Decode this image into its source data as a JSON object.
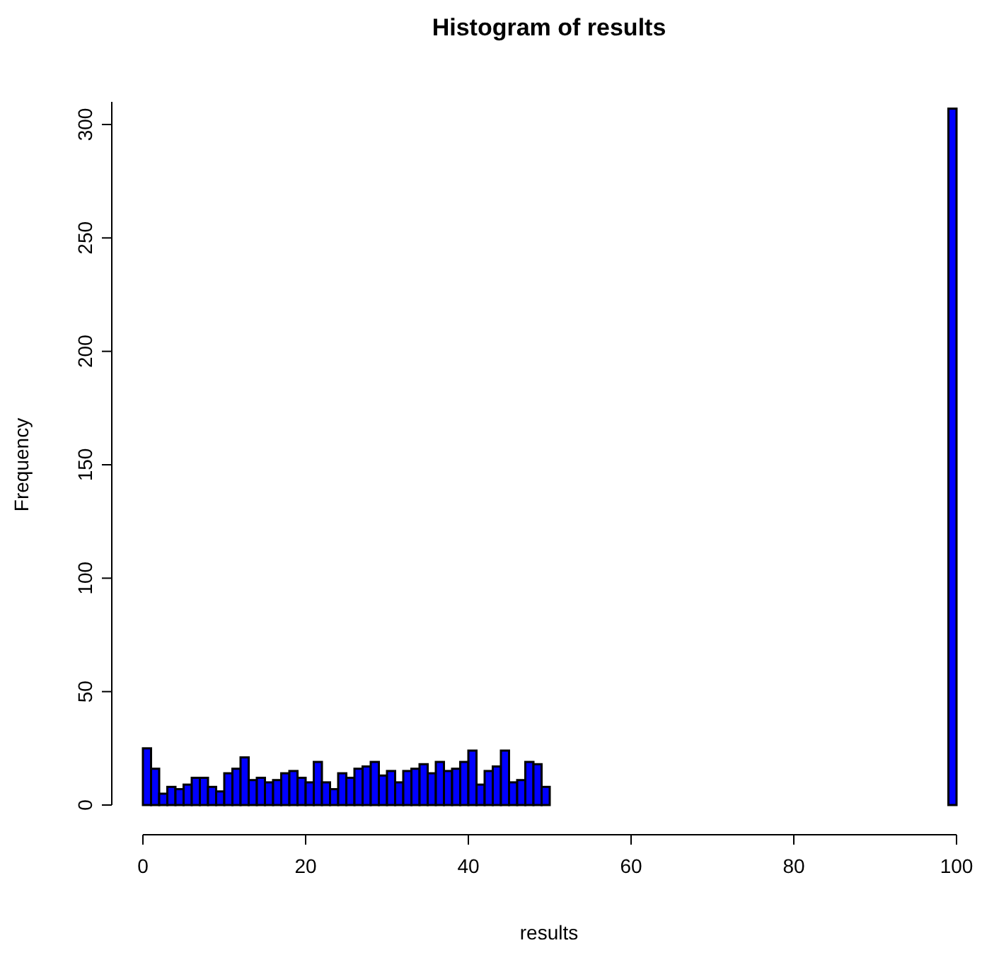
{
  "chart_data": {
    "type": "histogram",
    "title": "Histogram of results",
    "xlabel": "results",
    "ylabel": "Frequency",
    "bins": [
      0,
      1,
      2,
      3,
      4,
      5,
      6,
      7,
      8,
      9,
      10,
      11,
      12,
      13,
      14,
      15,
      16,
      17,
      18,
      19,
      20,
      21,
      22,
      23,
      24,
      25,
      26,
      27,
      28,
      29,
      30,
      31,
      32,
      33,
      34,
      35,
      36,
      37,
      38,
      39,
      40,
      41,
      42,
      43,
      44,
      45,
      46,
      47,
      48,
      49,
      50,
      51,
      52,
      53,
      54,
      55,
      56,
      57,
      58,
      59,
      60,
      61,
      62,
      63,
      64,
      65,
      66,
      67,
      68,
      69,
      70,
      71,
      72,
      73,
      74,
      75,
      76,
      77,
      78,
      79,
      80,
      81,
      82,
      83,
      84,
      85,
      86,
      87,
      88,
      89,
      90,
      91,
      92,
      93,
      94,
      95,
      96,
      97,
      98,
      99,
      100
    ],
    "values": [
      25,
      16,
      5,
      8,
      7,
      9,
      12,
      12,
      8,
      6,
      14,
      16,
      21,
      11,
      12,
      10,
      11,
      14,
      15,
      12,
      10,
      19,
      10,
      7,
      14,
      12,
      16,
      17,
      19,
      13,
      15,
      10,
      15,
      16,
      18,
      14,
      19,
      15,
      16,
      19,
      24,
      9,
      15,
      17,
      24,
      10,
      11,
      19,
      18,
      8,
      0,
      0,
      0,
      0,
      0,
      0,
      0,
      0,
      0,
      0,
      0,
      0,
      0,
      0,
      0,
      0,
      0,
      0,
      0,
      0,
      0,
      0,
      0,
      0,
      0,
      0,
      0,
      0,
      0,
      0,
      0,
      0,
      0,
      0,
      0,
      0,
      0,
      0,
      0,
      0,
      0,
      0,
      0,
      0,
      0,
      0,
      0,
      0,
      0,
      307
    ],
    "color": "#0000ff",
    "xlim": [
      0,
      100
    ],
    "xticks": [
      0,
      20,
      40,
      60,
      80,
      100
    ],
    "ylim": [
      0,
      310
    ],
    "yticks": [
      0,
      50,
      100,
      150,
      200,
      250,
      300
    ],
    "grid": false
  }
}
